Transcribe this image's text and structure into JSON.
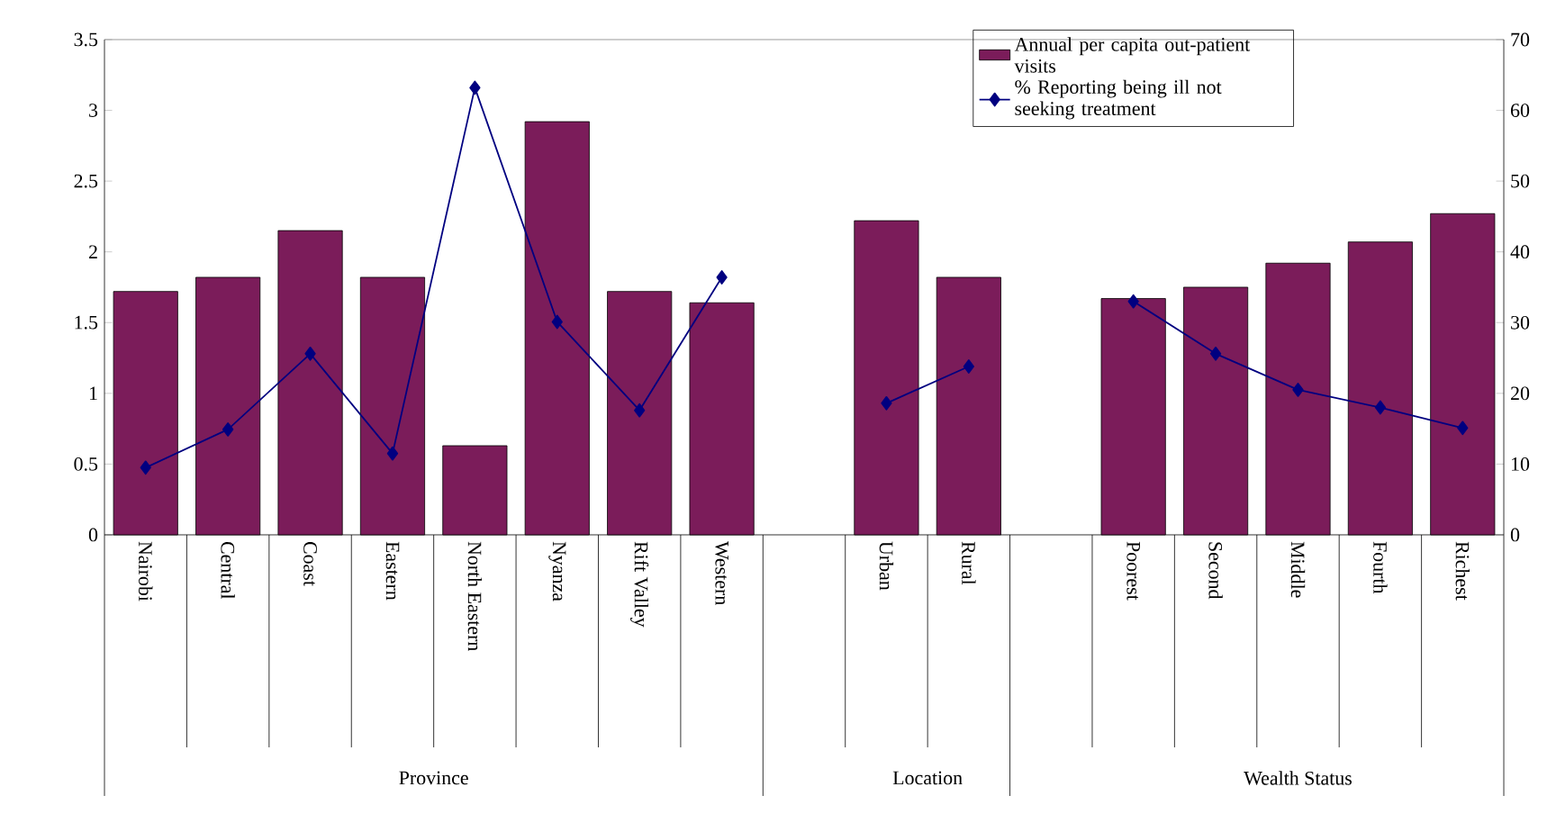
{
  "chart_data": {
    "type": "bar",
    "categories": [
      "Nairobi",
      "Central",
      "Coast",
      "Eastern",
      "North Eastern",
      "Nyanza",
      "Rift Valley",
      "Western",
      null,
      "Urban",
      "Rural",
      null,
      "Poorest",
      "Second",
      "Middle",
      "Fourth",
      "Richest"
    ],
    "series": [
      {
        "name": "Annual per capita out-patient visits",
        "color": "#7b1c5a",
        "values": [
          1.72,
          1.82,
          2.15,
          1.82,
          0.63,
          2.92,
          1.72,
          1.64,
          null,
          2.22,
          1.82,
          null,
          1.67,
          1.75,
          1.92,
          2.07,
          2.27
        ]
      },
      {
        "name": "% Reporting being ill not seeking treatment",
        "type": "line",
        "axis": "y2",
        "color": "#000080",
        "marker": "diamond",
        "values": [
          9.5,
          14.9,
          25.6,
          11.5,
          63.2,
          30.1,
          17.6,
          36.4,
          null,
          18.6,
          23.8,
          null,
          33.0,
          25.6,
          20.5,
          18.0,
          15.1
        ]
      }
    ],
    "ylim": [
      0,
      3.5
    ],
    "yticks": [
      0,
      0.5,
      1,
      1.5,
      2,
      2.5,
      3,
      3.5
    ],
    "y2lim": [
      0,
      70
    ],
    "y2ticks": [
      0,
      10,
      20,
      30,
      40,
      50,
      60,
      70
    ],
    "annotations": [
      "Province",
      "Location",
      "Wealth Status"
    ],
    "legend": "top right",
    "grid": false
  }
}
